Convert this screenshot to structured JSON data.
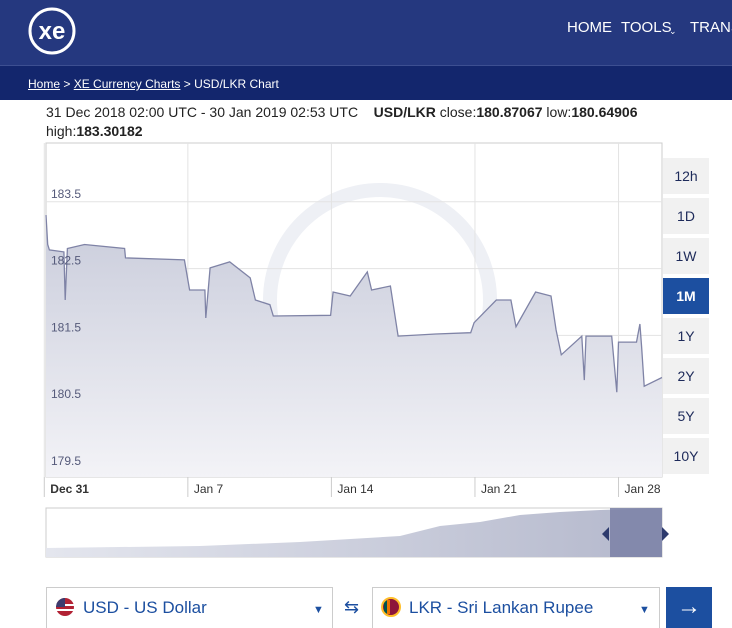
{
  "header": {
    "logo": "xe",
    "nav": [
      "HOME",
      "TOOLS",
      "TRANS"
    ]
  },
  "breadcrumb": {
    "items": [
      "Home",
      "XE Currency Charts",
      "USD/LKR Chart"
    ],
    "separator": ">"
  },
  "info": {
    "range": "31 Dec 2018 02:00 UTC - 30 Jan 2019 02:53 UTC",
    "pair": "USD/LKR",
    "close_label": "close:",
    "close": 180.87067,
    "low_label": "low:",
    "low": 180.64906,
    "high_label": "high:",
    "high": 183.30182
  },
  "chart_data": {
    "type": "area",
    "color": "#7f83a6",
    "x": [
      "2018-12-31 02:00",
      "2018-12-31 04:00",
      "2018-12-31 06:00",
      "2018-12-31 23:00",
      "2019-01-01 00:30",
      "2019-01-01 03:00",
      "2019-01-01 23:00",
      "2019-01-03 22:00",
      "2019-01-03 23:00",
      "2019-01-06 20:00",
      "2019-01-07 02:00",
      "2019-01-07 20:00",
      "2019-01-07 21:00",
      "2019-01-08 02:00",
      "2019-01-09 01:00",
      "2019-01-10 01:00",
      "2019-01-10 07:00",
      "2019-01-11 00:00",
      "2019-01-11 04:00",
      "2019-01-13 23:00",
      "2019-01-14 02:00",
      "2019-01-14 22:00",
      "2019-01-15 18:00",
      "2019-01-15 23:00",
      "2019-01-16 21:00",
      "2019-01-17 06:00",
      "2019-01-19 02:00",
      "2019-01-20 19:00",
      "2019-01-20 23:00",
      "2019-01-22 01:00",
      "2019-01-22 18:00",
      "2019-01-23 00:00",
      "2019-01-23 23:00",
      "2019-01-24 17:00",
      "2019-01-24 23:00",
      "2019-01-25 05:00",
      "2019-01-26 05:00",
      "2019-01-26 08:00",
      "2019-01-26 10:00",
      "2019-01-27 16:00",
      "2019-01-27 22:00",
      "2019-01-28 00:00",
      "2019-01-28 21:00",
      "2019-01-29 01:00",
      "2019-01-29 03:00",
      "2019-01-29 06:00",
      "2019-01-30 02:53"
    ],
    "values": [
      183.3,
      182.86,
      182.78,
      182.75,
      182.03,
      182.8,
      182.86,
      182.8,
      182.66,
      182.63,
      182.18,
      182.18,
      181.76,
      182.51,
      182.6,
      182.36,
      182.03,
      181.96,
      181.79,
      181.8,
      182.15,
      182.09,
      182.45,
      182.18,
      182.24,
      181.49,
      181.52,
      181.54,
      181.69,
      182.03,
      182.03,
      181.63,
      182.15,
      182.09,
      181.58,
      181.21,
      181.49,
      180.83,
      181.49,
      181.49,
      180.65,
      181.4,
      181.4,
      181.67,
      181.33,
      180.74,
      180.87
    ],
    "xlim": [
      "2018-12-31 02:00",
      "2019-01-30 02:53"
    ],
    "xticks": [
      {
        "value": "2018-12-31",
        "label": "Dec 31"
      },
      {
        "value": "2019-01-07",
        "label": "Jan 7"
      },
      {
        "value": "2019-01-14",
        "label": "Jan 14"
      },
      {
        "value": "2019-01-21",
        "label": "Jan 21"
      },
      {
        "value": "2019-01-28",
        "label": "Jan 28"
      }
    ],
    "ylim": [
      179.38,
      184.38
    ],
    "yticks": [
      179.5,
      180.5,
      181.5,
      182.5,
      183.5
    ],
    "grid": true
  },
  "range_buttons": {
    "labels": [
      "12h",
      "1D",
      "1W",
      "1M",
      "1Y",
      "2Y",
      "5Y",
      "10Y"
    ],
    "active_index": 3
  },
  "converter": {
    "from": "USD - US Dollar",
    "to": "LKR - Sri Lankan Rupee"
  }
}
